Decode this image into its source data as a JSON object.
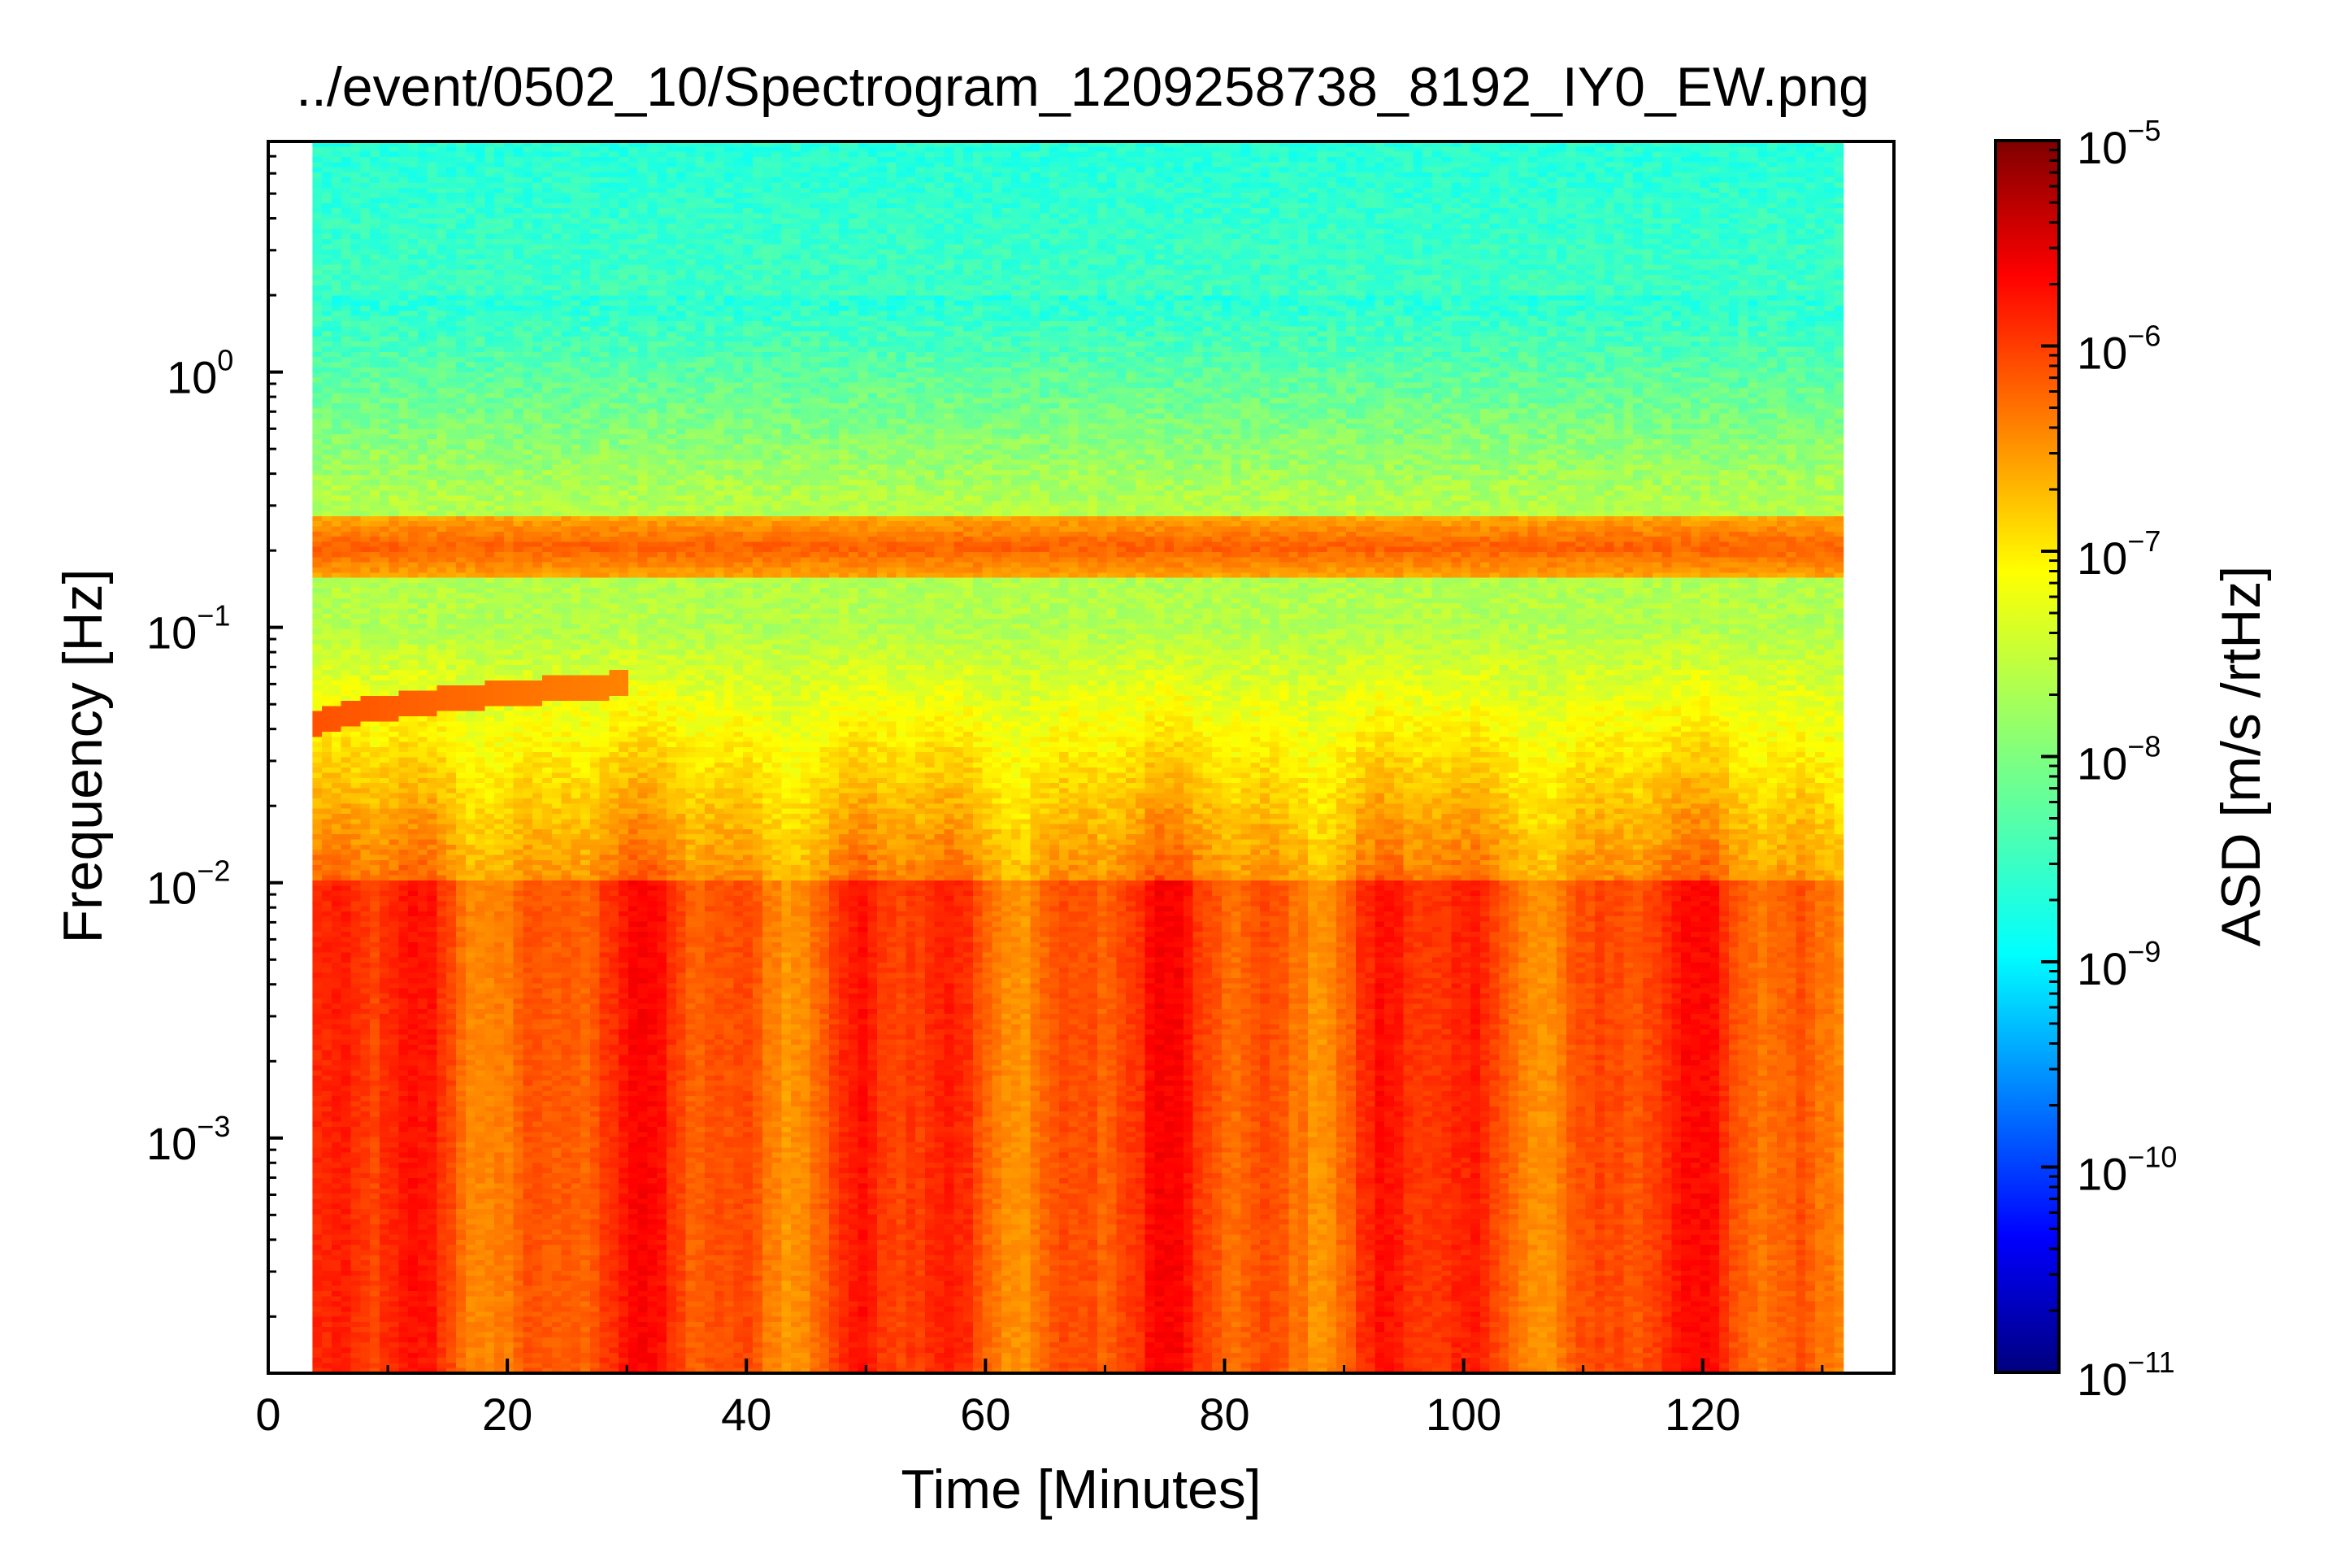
{
  "chart_data": {
    "type": "heatmap",
    "title": "../event/0502_10/Spectrogram_1209258738_8192_IY0_EW.png",
    "xlabel": "Time [Minutes]",
    "ylabel": "Frequency [Hz]",
    "colorbar_label": "ASD [m/s /rtHz]",
    "xlim": [
      0,
      136
    ],
    "ylim": [
      0.00012,
      8
    ],
    "y_scale": "log",
    "x_data_range": [
      3.7,
      131.8
    ],
    "x_ticks": [
      {
        "value": 0,
        "label": "0"
      },
      {
        "value": 20,
        "label": "20"
      },
      {
        "value": 40,
        "label": "40"
      },
      {
        "value": 60,
        "label": "60"
      },
      {
        "value": 80,
        "label": "80"
      },
      {
        "value": 100,
        "label": "100"
      },
      {
        "value": 120,
        "label": "120"
      }
    ],
    "y_ticks": [
      {
        "value": 0.001,
        "base": "10",
        "exp": "−3"
      },
      {
        "value": 0.01,
        "base": "10",
        "exp": "−2"
      },
      {
        "value": 0.1,
        "base": "10",
        "exp": "−1"
      },
      {
        "value": 1,
        "base": "10",
        "exp": "0"
      }
    ],
    "colorbar": {
      "scale": "log",
      "range": [
        1e-11,
        1e-05
      ],
      "colormap": "jet",
      "ticks": [
        {
          "value": 1e-11,
          "base": "10",
          "exp": "−11"
        },
        {
          "value": 1e-10,
          "base": "10",
          "exp": "−10"
        },
        {
          "value": 1e-09,
          "base": "10",
          "exp": "−9"
        },
        {
          "value": 1e-08,
          "base": "10",
          "exp": "−8"
        },
        {
          "value": 1e-07,
          "base": "10",
          "exp": "−7"
        },
        {
          "value": 1e-06,
          "base": "10",
          "exp": "−6"
        },
        {
          "value": 1e-05,
          "base": "10",
          "exp": "−5"
        }
      ]
    },
    "features": {
      "microseism_band_hz": [
        0.17,
        0.25
      ],
      "microseism_asd": 5e-07,
      "background_high_freq_asd": 3e-09,
      "background_mid_freq_asd": 2e-08,
      "low_freq_asd": 8e-07,
      "dispersive_arrival": {
        "time_range_min": [
          3.7,
          30
        ],
        "freq_range_hz": [
          0.04,
          0.06
        ],
        "asd": 6e-07
      }
    },
    "grid": false
  },
  "colors": {
    "axis": "#000000",
    "background": "#ffffff"
  }
}
